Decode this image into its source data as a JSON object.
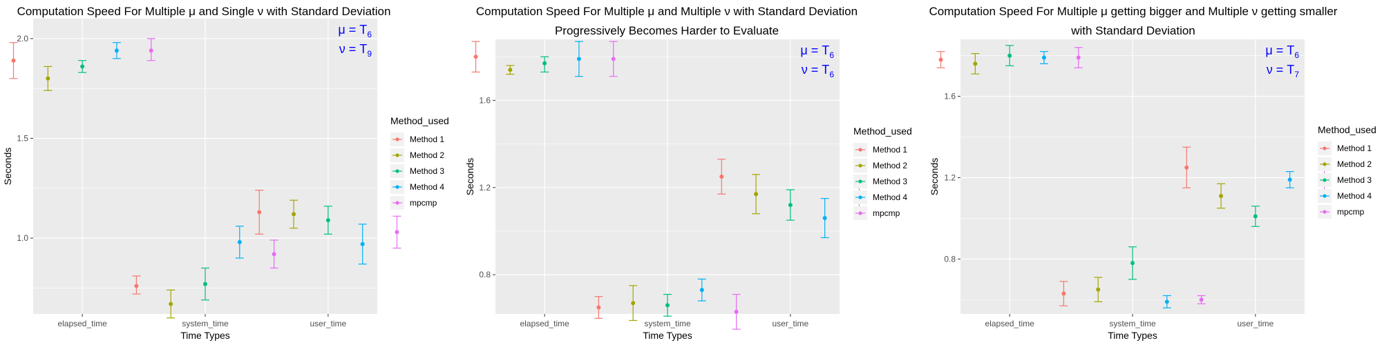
{
  "chart_data": [
    {
      "type": "errorbar",
      "title": [
        "Computation Speed For Multiple μ and Single ν with Standard Deviation"
      ],
      "xlabel": "Time Types",
      "ylabel": "Seconds",
      "categories": [
        "elapsed_time",
        "system_time",
        "user_time"
      ],
      "ylim": [
        0.62,
        2.1
      ],
      "yticks": [
        1.0,
        1.5,
        2.0
      ],
      "ytick_labels": [
        "1.0",
        "1.5",
        "2.0"
      ],
      "legend": {
        "title": "Method_used",
        "position": "right"
      },
      "annotation": [
        {
          "greek": "μ",
          "eq": " = T",
          "sub": "6"
        },
        {
          "greek": "ν",
          "eq": " = T",
          "sub": "9"
        }
      ],
      "series": [
        {
          "name": "Method 1",
          "color": "#F8766D",
          "values": [
            1.89,
            0.76,
            1.13
          ],
          "lower": [
            1.8,
            0.72,
            1.02
          ],
          "upper": [
            1.98,
            0.81,
            1.24
          ]
        },
        {
          "name": "Method 2",
          "color": "#A3A500",
          "values": [
            1.8,
            0.67,
            1.12
          ],
          "lower": [
            1.74,
            0.6,
            1.05
          ],
          "upper": [
            1.86,
            0.74,
            1.19
          ]
        },
        {
          "name": "Method 3",
          "color": "#00BF7D",
          "values": [
            1.86,
            0.77,
            1.09
          ],
          "lower": [
            1.83,
            0.69,
            1.02
          ],
          "upper": [
            1.89,
            0.85,
            1.16
          ]
        },
        {
          "name": "Method 4",
          "color": "#00B0F6",
          "values": [
            1.94,
            0.98,
            0.97
          ],
          "lower": [
            1.9,
            0.9,
            0.87
          ],
          "upper": [
            1.98,
            1.06,
            1.07
          ]
        },
        {
          "name": "mpcmp",
          "color": "#E76BF3",
          "values": [
            1.94,
            0.92,
            1.03
          ],
          "lower": [
            1.89,
            0.85,
            0.95
          ],
          "upper": [
            2.0,
            0.99,
            1.11
          ]
        }
      ]
    },
    {
      "type": "errorbar",
      "title": [
        "Computation Speed For Multiple μ and Multiple ν with Standard Deviation",
        "Progressively Becomes Harder to Evaluate"
      ],
      "xlabel": "Time Types",
      "ylabel": "Seconds",
      "categories": [
        "elapsed_time",
        "system_time",
        "user_time"
      ],
      "ylim": [
        0.62,
        1.88
      ],
      "yticks": [
        0.8,
        1.2,
        1.6
      ],
      "ytick_labels": [
        "0.8",
        "1.2",
        "1.6"
      ],
      "legend": {
        "title": "Method_used",
        "position": "right"
      },
      "annotation": [
        {
          "greek": "μ",
          "eq": " = T",
          "sub": "6"
        },
        {
          "greek": "ν",
          "eq": " = T",
          "sub": "6"
        }
      ],
      "series": [
        {
          "name": "Method 1",
          "color": "#F8766D",
          "values": [
            1.8,
            0.65,
            1.25
          ],
          "lower": [
            1.73,
            0.6,
            1.17
          ],
          "upper": [
            1.87,
            0.7,
            1.33
          ]
        },
        {
          "name": "Method 2",
          "color": "#A3A500",
          "values": [
            1.74,
            0.67,
            1.17
          ],
          "lower": [
            1.72,
            0.59,
            1.08
          ],
          "upper": [
            1.76,
            0.75,
            1.26
          ]
        },
        {
          "name": "Method 3",
          "color": "#00BF7D",
          "values": [
            1.77,
            0.66,
            1.12
          ],
          "lower": [
            1.73,
            0.61,
            1.05
          ],
          "upper": [
            1.8,
            0.71,
            1.19
          ]
        },
        {
          "name": "Method 4",
          "color": "#00B0F6",
          "values": [
            1.79,
            0.73,
            1.06
          ],
          "lower": [
            1.71,
            0.68,
            0.97
          ],
          "upper": [
            1.87,
            0.78,
            1.15
          ]
        },
        {
          "name": "mpcmp",
          "color": "#E76BF3",
          "values": [
            1.79,
            0.63,
            1.16
          ],
          "lower": [
            1.71,
            0.55,
            1.09
          ],
          "upper": [
            1.87,
            0.71,
            1.24
          ]
        }
      ]
    },
    {
      "type": "errorbar",
      "title": [
        "Computation Speed For Multiple μ getting bigger and Multiple ν getting smaller",
        "with Standard Deviation"
      ],
      "xlabel": "Time Types",
      "ylabel": "Seconds",
      "categories": [
        "elapsed_time",
        "system_time",
        "user_time"
      ],
      "ylim": [
        0.53,
        1.88
      ],
      "yticks": [
        0.8,
        1.2,
        1.6
      ],
      "ytick_labels": [
        "0.8",
        "1.2",
        "1.6"
      ],
      "legend": {
        "title": "Method_used",
        "position": "right"
      },
      "annotation": [
        {
          "greek": "μ",
          "eq": " = T",
          "sub": "6"
        },
        {
          "greek": "ν",
          "eq": " = T",
          "sub": "7"
        }
      ],
      "series": [
        {
          "name": "Method 1",
          "color": "#F8766D",
          "values": [
            1.78,
            0.63,
            1.25
          ],
          "lower": [
            1.74,
            0.57,
            1.15
          ],
          "upper": [
            1.82,
            0.69,
            1.35
          ]
        },
        {
          "name": "Method 2",
          "color": "#A3A500",
          "values": [
            1.76,
            0.65,
            1.11
          ],
          "lower": [
            1.71,
            0.59,
            1.05
          ],
          "upper": [
            1.81,
            0.71,
            1.17
          ]
        },
        {
          "name": "Method 3",
          "color": "#00BF7D",
          "values": [
            1.8,
            0.78,
            1.01
          ],
          "lower": [
            1.75,
            0.7,
            0.96
          ],
          "upper": [
            1.85,
            0.86,
            1.06
          ]
        },
        {
          "name": "Method 4",
          "color": "#00B0F6",
          "values": [
            1.79,
            0.59,
            1.19
          ],
          "lower": [
            1.76,
            0.56,
            1.15
          ],
          "upper": [
            1.82,
            0.62,
            1.23
          ]
        },
        {
          "name": "mpcmp",
          "color": "#E76BF3",
          "values": [
            1.79,
            0.6,
            1.19
          ],
          "lower": [
            1.74,
            0.58,
            1.13
          ],
          "upper": [
            1.84,
            0.62,
            1.25
          ]
        }
      ]
    }
  ]
}
